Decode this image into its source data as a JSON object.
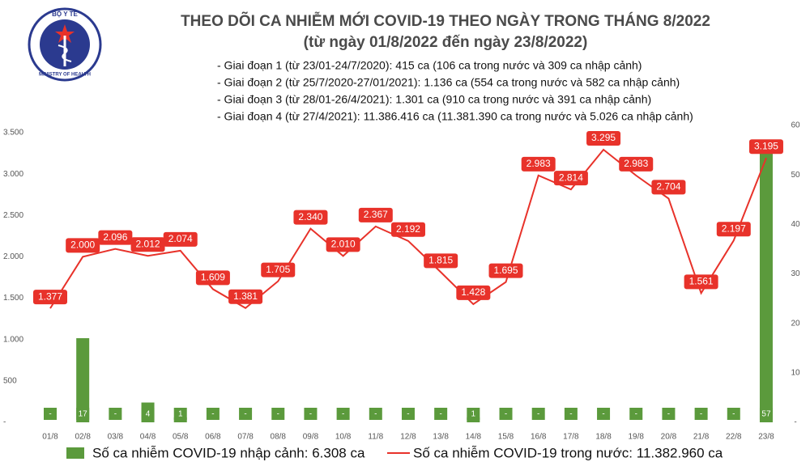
{
  "logo": {
    "top": "BỘ Y TẾ",
    "bottom": "MINISTRY OF HEALTH"
  },
  "chart_data": {
    "type": "bar",
    "title": "THEO DÕI CA NHIỄM MỚI COVID-19 THEO NGÀY TRONG THÁNG 8/2022",
    "subtitle": "(từ ngày 01/8/2022 đến ngày 23/8/2022)",
    "notes": [
      "- Giai đoạn 1 (từ 23/01-24/7/2020): 415 ca (106 ca trong nước và 309 ca nhập cảnh)",
      "- Giai đoạn 2 (từ 25/7/2020-27/01/2021): 1.136 ca (554 ca trong nước và 582 ca nhập cảnh)",
      "- Giai đoạn 3 (từ 28/01-26/4/2021): 1.301 ca (910 ca trong nước và 391 ca nhập cảnh)",
      "- Giai đoạn 4 (từ 27/4/2021): 11.386.416 ca (11.381.390 ca trong nước và 5.026 ca nhập cảnh)"
    ],
    "categories": [
      "01/8",
      "02/8",
      "03/8",
      "04/8",
      "05/8",
      "06/8",
      "07/8",
      "08/8",
      "09/8",
      "10/8",
      "11/8",
      "12/8",
      "13/8",
      "14/8",
      "15/8",
      "16/8",
      "17/8",
      "18/8",
      "19/8",
      "20/8",
      "21/8",
      "22/8",
      "23/8"
    ],
    "series": [
      {
        "name": "Số ca nhiễm COVID-19 nhập cảnh: 6.308 ca",
        "type": "bar",
        "axis": "y2",
        "color": "#5b9a3c",
        "values": [
          0,
          17,
          0,
          4,
          1,
          0,
          0,
          0,
          0,
          0,
          0,
          0,
          0,
          1,
          0,
          0,
          0,
          0,
          0,
          0,
          0,
          0,
          57
        ],
        "value_labels": [
          "-",
          "17",
          "-",
          "4",
          "1",
          "-",
          "-",
          "-",
          "-",
          "-",
          "-",
          "-",
          "-",
          "1",
          "-",
          "-",
          "-",
          "-",
          "-",
          "-",
          "-",
          "-",
          "57"
        ]
      },
      {
        "name": "Số ca nhiễm COVID-19 trong nước: 11.382.960 ca",
        "type": "line",
        "color": "#e8322a",
        "values": [
          1377,
          2000,
          2096,
          2012,
          2074,
          1609,
          1381,
          1705,
          2340,
          2010,
          2367,
          2192,
          1815,
          1428,
          1695,
          2983,
          2814,
          3295,
          2983,
          2704,
          1561,
          2197,
          3195
        ],
        "value_labels": [
          "1.377",
          "2.000",
          "2.096",
          "2.012",
          "2.074",
          "1.609",
          "1.381",
          "1.705",
          "2.340",
          "2.010",
          "2.367",
          "2.192",
          "1.815",
          "1.428",
          "1.695",
          "2.983",
          "2.814",
          "3.295",
          "2.983",
          "2.704",
          "1.561",
          "2.197",
          "3.195"
        ]
      }
    ],
    "ylim": [
      0,
      3500
    ],
    "yticks": [
      {
        "value": 0,
        "label": "-"
      },
      500,
      {
        "value": 1000,
        "label": "1.000"
      },
      {
        "value": 1500,
        "label": "1.500"
      },
      {
        "value": 2000,
        "label": "2.000"
      },
      {
        "value": 2500,
        "label": "2.500"
      },
      {
        "value": 3000,
        "label": "3.000"
      },
      {
        "value": 3500,
        "label": "3.500"
      }
    ],
    "y2lim": [
      0,
      60
    ],
    "y2ticks": [
      {
        "value": 0,
        "label": "-"
      },
      10,
      20,
      30,
      40,
      50,
      60
    ],
    "grid": false,
    "legend": "bottom"
  }
}
